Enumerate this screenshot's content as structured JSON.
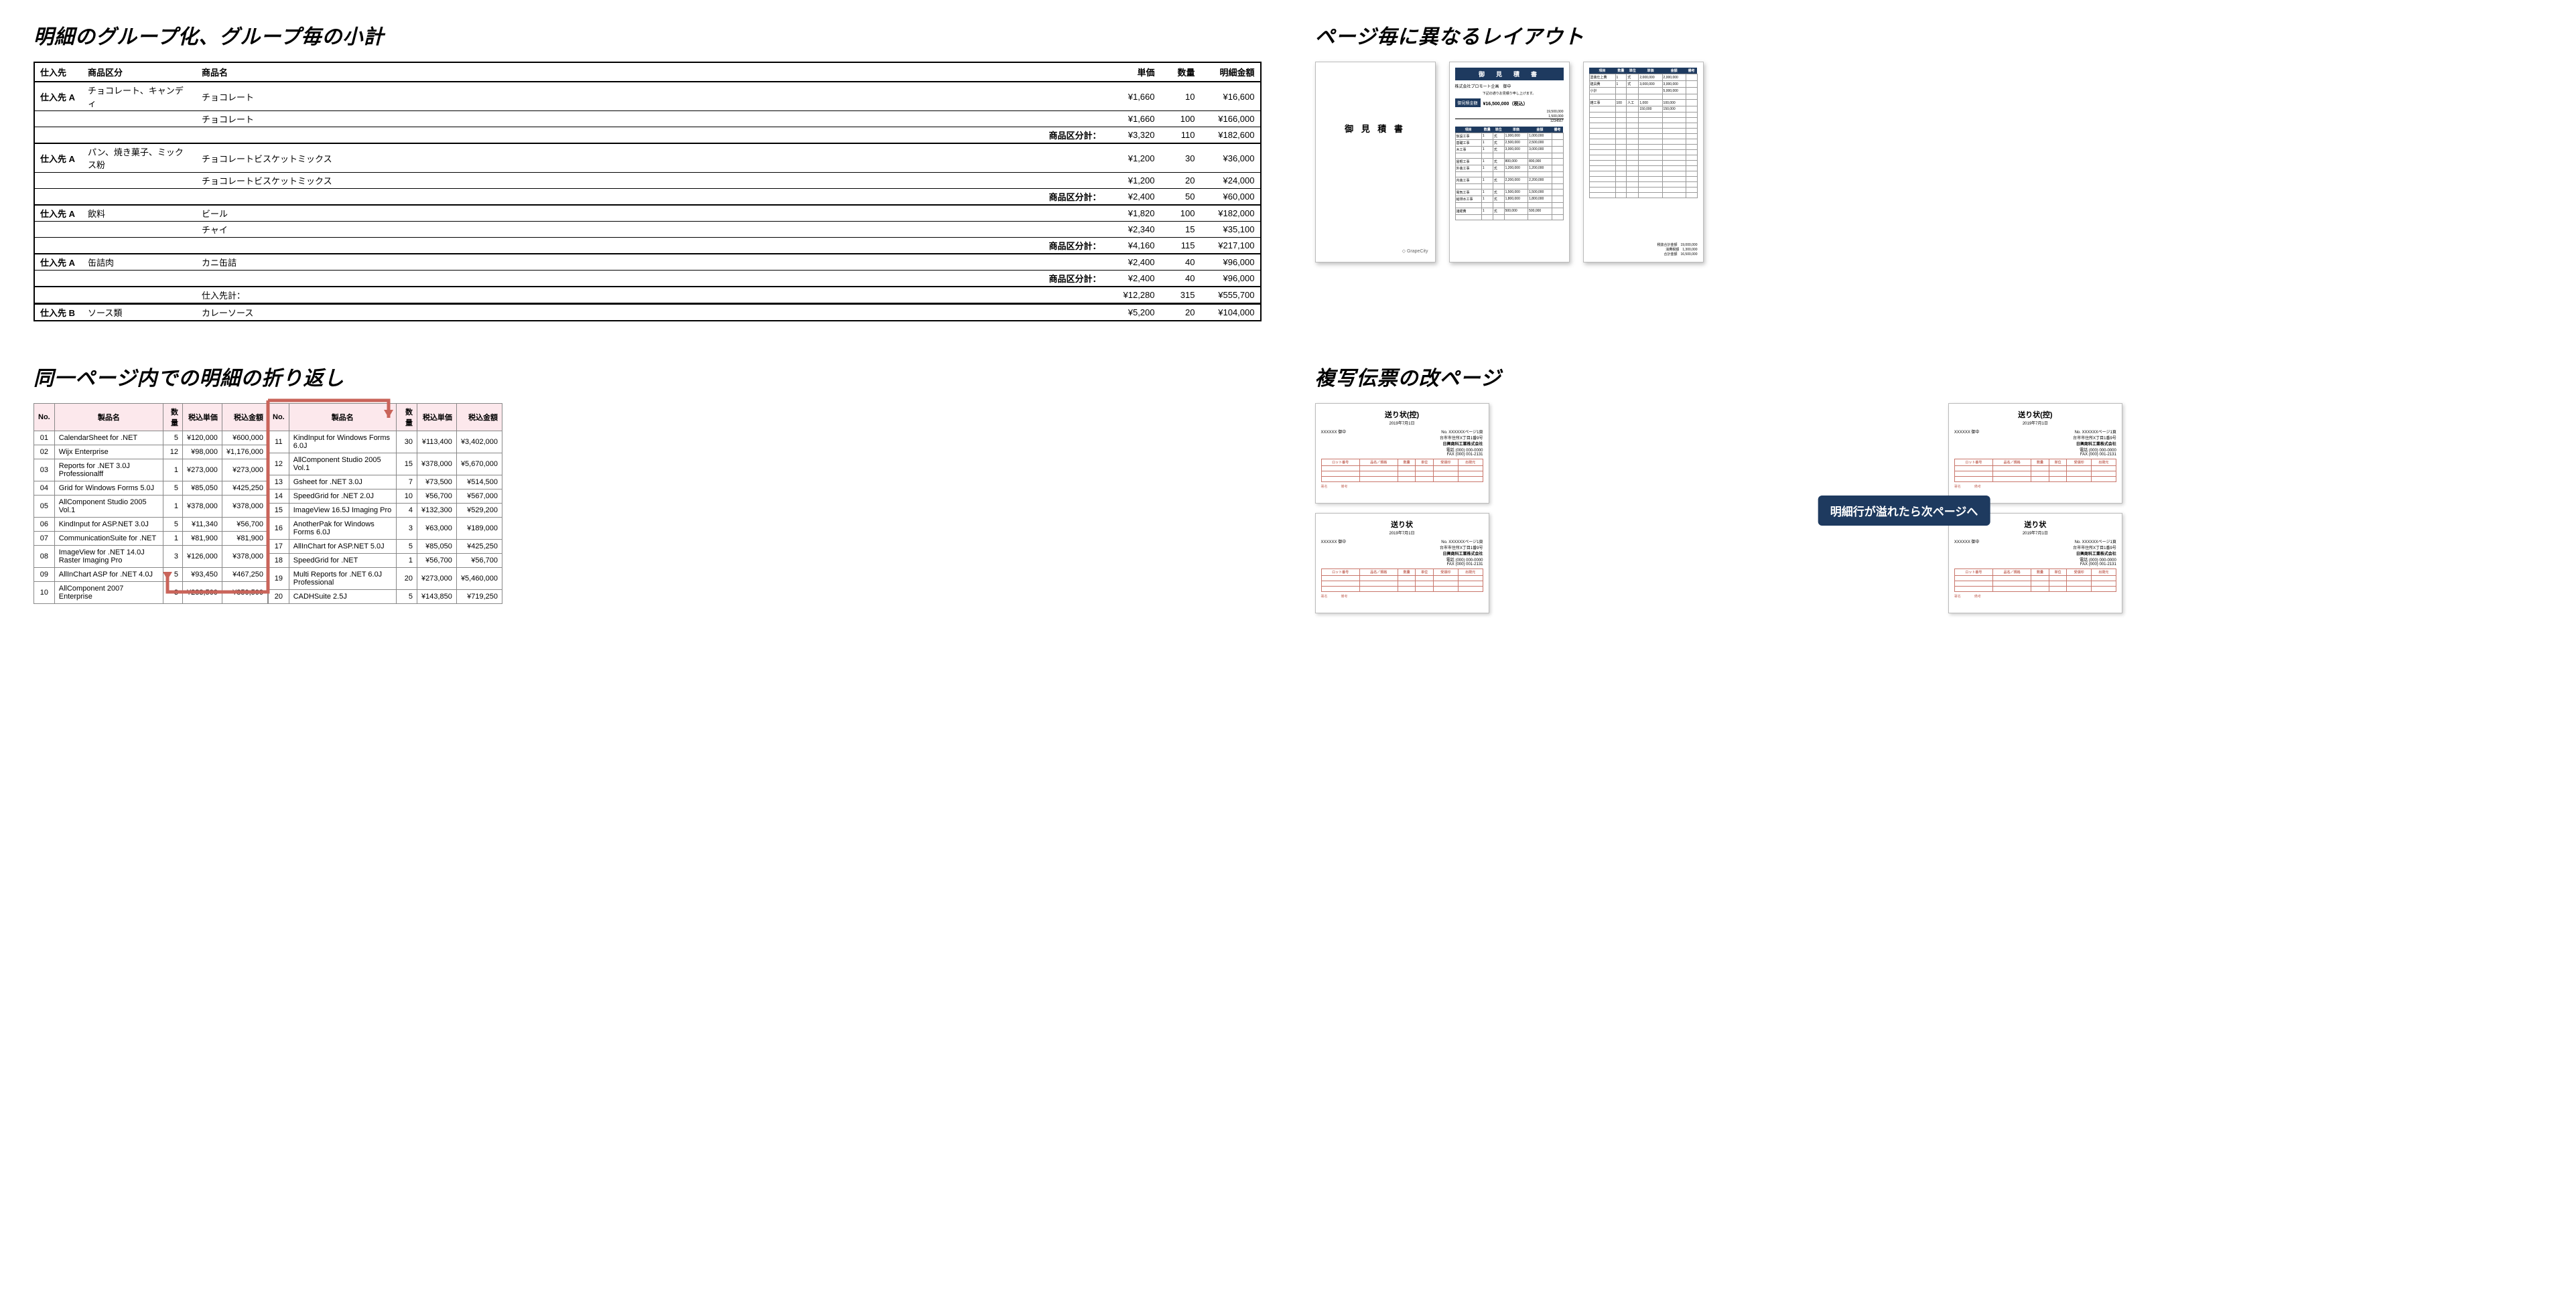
{
  "section1": {
    "title": "明細のグループ化、グループ毎の小計",
    "columns": [
      "仕入先",
      "商品区分",
      "商品名",
      "単価",
      "数量",
      "明細金額"
    ],
    "subtotal_label": "商品区分計：",
    "supplier_total_label": "仕入先計：",
    "rows": [
      {
        "type": "row",
        "supplier": "仕入先 A",
        "category": "チョコレート、キャンディ",
        "name": "チョコレート",
        "price": "¥1,660",
        "qty": "10",
        "amount": "¥16,600"
      },
      {
        "type": "row",
        "supplier": "",
        "category": "",
        "name": "チョコレート",
        "price": "¥1,660",
        "qty": "100",
        "amount": "¥166,000"
      },
      {
        "type": "subtotal",
        "price": "¥3,320",
        "qty": "110",
        "amount": "¥182,600"
      },
      {
        "type": "row",
        "supplier": "仕入先 A",
        "category": "パン、焼き菓子、ミックス粉",
        "name": "チョコレートビスケットミックス",
        "price": "¥1,200",
        "qty": "30",
        "amount": "¥36,000"
      },
      {
        "type": "row",
        "supplier": "",
        "category": "",
        "name": "チョコレートビスケットミックス",
        "price": "¥1,200",
        "qty": "20",
        "amount": "¥24,000"
      },
      {
        "type": "subtotal",
        "price": "¥2,400",
        "qty": "50",
        "amount": "¥60,000"
      },
      {
        "type": "row",
        "supplier": "仕入先 A",
        "category": "飲料",
        "name": "ビール",
        "price": "¥1,820",
        "qty": "100",
        "amount": "¥182,000"
      },
      {
        "type": "row",
        "supplier": "",
        "category": "",
        "name": "チャイ",
        "price": "¥2,340",
        "qty": "15",
        "amount": "¥35,100"
      },
      {
        "type": "subtotal",
        "price": "¥4,160",
        "qty": "115",
        "amount": "¥217,100"
      },
      {
        "type": "row",
        "supplier": "仕入先 A",
        "category": "缶詰肉",
        "name": "カニ缶詰",
        "price": "¥2,400",
        "qty": "40",
        "amount": "¥96,000"
      },
      {
        "type": "subtotal",
        "price": "¥2,400",
        "qty": "40",
        "amount": "¥96,000"
      },
      {
        "type": "grand",
        "price": "¥12,280",
        "qty": "315",
        "amount": "¥555,700"
      },
      {
        "type": "row",
        "supplier": "仕入先 B",
        "category": "ソース類",
        "name": "カレーソース",
        "price": "¥5,200",
        "qty": "20",
        "amount": "¥104,000"
      }
    ]
  },
  "section2": {
    "title": "ページ毎に異なるレイアウト",
    "cover_title": "御 見 積 書",
    "logo": "◇ GrapeCity",
    "quote_header": "御　見　積　書",
    "quote_to": "株式会社プロモート企画　御中",
    "quote_total_label": "御見積金額",
    "quote_total_value": "¥16,500,000（税込）",
    "quote_note": "下記の通りお見積り申し上げます。",
    "quote_cols": [
      "項目",
      "数量",
      "単位",
      "単価",
      "金額",
      "備考"
    ],
    "page3_cols": [
      "項目",
      "数量",
      "単位",
      "単価",
      "金額",
      "備考"
    ]
  },
  "section3": {
    "title": "同一ページ内での明細の折り返し",
    "columns": [
      "No.",
      "製品名",
      "数量",
      "税込単価",
      "税込金額"
    ],
    "left": [
      {
        "no": "01",
        "name": "CalendarSheet for .NET",
        "qty": "5",
        "unit": "¥120,000",
        "amt": "¥600,000"
      },
      {
        "no": "02",
        "name": "Wijx Enterprise",
        "qty": "12",
        "unit": "¥98,000",
        "amt": "¥1,176,000"
      },
      {
        "no": "03",
        "name": "Reports for .NET 3.0J Professionalff",
        "qty": "1",
        "unit": "¥273,000",
        "amt": "¥273,000"
      },
      {
        "no": "04",
        "name": "Grid for Windows Forms 5.0J",
        "qty": "5",
        "unit": "¥85,050",
        "amt": "¥425,250"
      },
      {
        "no": "05",
        "name": "AllComponent Studio 2005 Vol.1",
        "qty": "1",
        "unit": "¥378,000",
        "amt": "¥378,000"
      },
      {
        "no": "06",
        "name": "KindInput for ASP.NET 3.0J",
        "qty": "5",
        "unit": "¥11,340",
        "amt": "¥56,700"
      },
      {
        "no": "07",
        "name": "CommunicationSuite for .NET",
        "qty": "1",
        "unit": "¥81,900",
        "amt": "¥81,900"
      },
      {
        "no": "08",
        "name": "ImageView for .NET 14.0J Raster Imaging Pro",
        "qty": "3",
        "unit": "¥126,000",
        "amt": "¥378,000"
      },
      {
        "no": "09",
        "name": "AllInChart ASP for .NET 4.0J",
        "qty": "5",
        "unit": "¥93,450",
        "amt": "¥467,250"
      },
      {
        "no": "10",
        "name": "AllComponent 2007 Enterprise",
        "qty": "3",
        "unit": "¥283,500",
        "amt": "¥850,500"
      }
    ],
    "right": [
      {
        "no": "11",
        "name": "KindInput for Windows Forms 6.0J",
        "qty": "30",
        "unit": "¥113,400",
        "amt": "¥3,402,000"
      },
      {
        "no": "12",
        "name": "AllComponent Studio 2005 Vol.1",
        "qty": "15",
        "unit": "¥378,000",
        "amt": "¥5,670,000"
      },
      {
        "no": "13",
        "name": "Gsheet for .NET 3.0J",
        "qty": "7",
        "unit": "¥73,500",
        "amt": "¥514,500"
      },
      {
        "no": "14",
        "name": "SpeedGrid for .NET 2.0J",
        "qty": "10",
        "unit": "¥56,700",
        "amt": "¥567,000"
      },
      {
        "no": "15",
        "name": "ImageView 16.5J Imaging Pro",
        "qty": "4",
        "unit": "¥132,300",
        "amt": "¥529,200"
      },
      {
        "no": "16",
        "name": "AnotherPak for Windows Forms 6.0J",
        "qty": "3",
        "unit": "¥63,000",
        "amt": "¥189,000"
      },
      {
        "no": "17",
        "name": "AllInChart for ASP.NET 5.0J",
        "qty": "5",
        "unit": "¥85,050",
        "amt": "¥425,250"
      },
      {
        "no": "18",
        "name": "SpeedGrid for .NET",
        "qty": "1",
        "unit": "¥56,700",
        "amt": "¥56,700"
      },
      {
        "no": "19",
        "name": "Multi Reports for .NET 6.0J Professional",
        "qty": "20",
        "unit": "¥273,000",
        "amt": "¥5,460,000"
      },
      {
        "no": "20",
        "name": "CADHSuite 2.5J",
        "qty": "5",
        "unit": "¥143,850",
        "amt": "¥719,250"
      }
    ],
    "arrow_color": "#c9645a"
  },
  "section4": {
    "title": "複写伝票の改ページ",
    "slip_title_copy": "送り状(控)",
    "slip_title_main": "送り状",
    "slip_date": "2019年7月1日",
    "slip_to": "XXXXXX 御中",
    "slip_no": "No. XXXXXXページ1頁",
    "slip_addr1": "台市市住所X丁目1番9号",
    "slip_addr2": "日興商科工業株式会社",
    "slip_tel": "電話 (000) 000-0000",
    "slip_fax": "FAX (000) 001-2131",
    "slip_cols": [
      "ロット番号",
      "品名／規格",
      "数量",
      "単位",
      "受領印",
      "出荷元"
    ],
    "slip_footer": [
      "署名",
      "備考"
    ],
    "callout": "明細行が溢れたら次ページへ",
    "arrow_color": "#c9645a",
    "callout_bg": "#1e3a5f"
  }
}
